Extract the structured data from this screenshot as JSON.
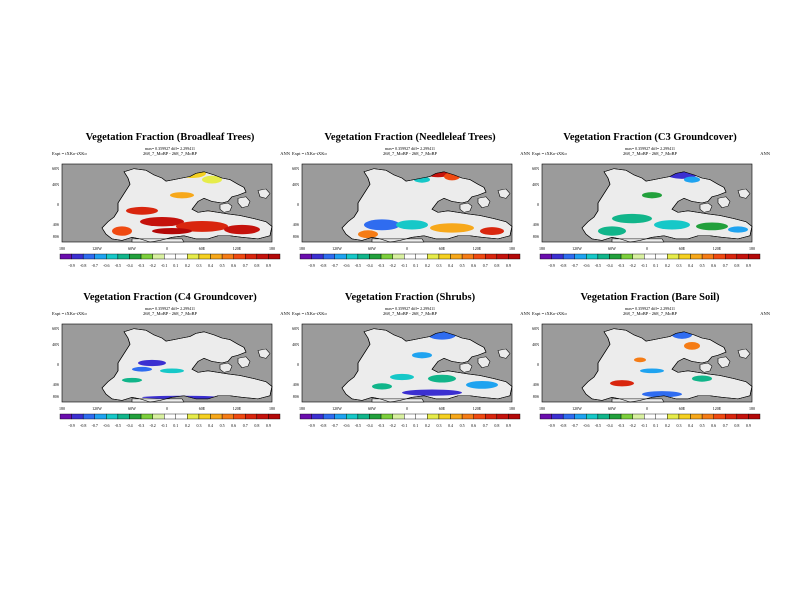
{
  "panels": [
    {
      "title": "Vegetation Fraction (Broadleaf Trees)",
      "stats": "max= 0.359927 diff= 2.299411",
      "expt": "Expt = tXKo-tXKo",
      "datasets": "268_7_MoBP - 268_7_MoBP",
      "season": "ANN"
    },
    {
      "title": "Vegetation Fraction (Needleleaf Trees)",
      "stats": "max= 0.359927 diff= 2.299411",
      "expt": "Expt = tXKo-tXKo",
      "datasets": "268_7_MoBP - 268_7_MoBP",
      "season": "ANN"
    },
    {
      "title": "Vegetation Fraction (C3 Groundcover)",
      "stats": "max= 0.359927 diff= 2.299411",
      "expt": "Expt = tXKo-tXKo",
      "datasets": "268_7_MoBP - 268_7_MoBP",
      "season": "ANN"
    },
    {
      "title": "Vegetation Fraction (C4 Groundcover)",
      "stats": "max= 0.359927 diff= 2.299411",
      "expt": "Expt = tXKo-tXKo",
      "datasets": "268_7_MoBP - 268_7_MoBP",
      "season": "ANN"
    },
    {
      "title": "Vegetation Fraction (Shrubs)",
      "stats": "max= 0.359927 diff= 2.299411",
      "expt": "Expt = tXKo-tXKo",
      "datasets": "268_7_MoBP - 268_7_MoBP",
      "season": "ANN"
    },
    {
      "title": "Vegetation Fraction (Bare Soil)",
      "stats": "max= 0.359927 diff= 2.299411",
      "expt": "Expt = tXKo-tXKo",
      "datasets": "268_7_MoBP - 268_7_MoBP",
      "season": "ANN"
    }
  ],
  "lat_labels": [
    "60N",
    "40N",
    "0",
    "40S",
    "80S"
  ],
  "lon_labels": [
    "180",
    "120W",
    "60W",
    "0",
    "60E",
    "120E",
    "180"
  ],
  "colorbar": {
    "labels": [
      "-0.9",
      "-0.8",
      "-0.7",
      "-0.6",
      "-0.5",
      "-0.4",
      "-0.3",
      "-0.2",
      "-0.1",
      "0.1",
      "0.2",
      "0.3",
      "0.4",
      "0.5",
      "0.6",
      "0.7",
      "0.8",
      "0.9"
    ],
    "colors": [
      "#6a0dad",
      "#3b2fd1",
      "#2f6cf0",
      "#1fa3f0",
      "#16c8c8",
      "#11b58a",
      "#22a03c",
      "#7ccf3c",
      "#d8f0a0",
      "#ffffff",
      "#ffffff",
      "#e6ec4a",
      "#f5d020",
      "#f7a81a",
      "#f57c16",
      "#ef4a12",
      "#d9260e",
      "#c5120c",
      "#b30808"
    ]
  },
  "colors": {
    "ocean": "#9b9b9b",
    "land": "#ececec"
  }
}
